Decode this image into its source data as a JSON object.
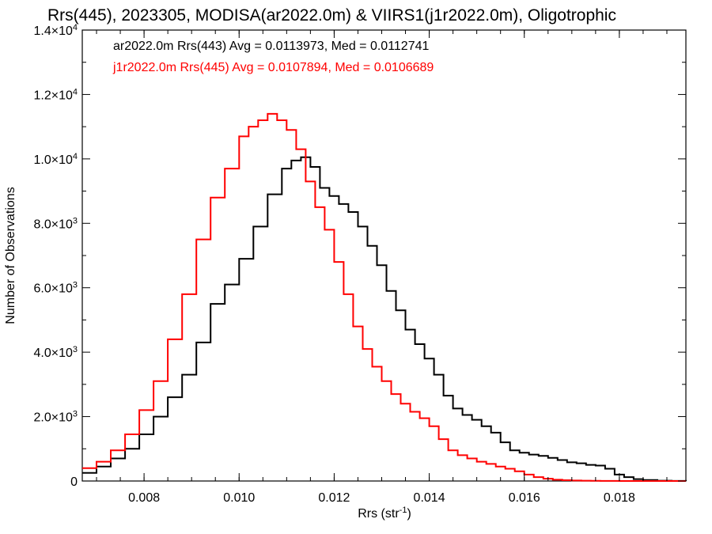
{
  "chart_data": {
    "type": "line",
    "title": "Rrs(445), 2023305, MODISA(ar2022.0m) & VIIRS1(j1r2022.0m), Oligotrophic",
    "xlabel": "Rrs (str",
    "xlabel_sup": "-1",
    "xlabel_suffix": ")",
    "ylabel": "Number of Observations",
    "xlim": [
      0.0067,
      0.0194
    ],
    "ylim": [
      0,
      14000
    ],
    "x_ticks": [
      0.008,
      0.01,
      0.012,
      0.014,
      0.016,
      0.018
    ],
    "x_tick_labels": [
      "0.008",
      "0.010",
      "0.012",
      "0.014",
      "0.016",
      "0.018"
    ],
    "y_ticks": [
      {
        "value": 0,
        "mant": "0",
        "exp": ""
      },
      {
        "value": 2000,
        "mant": "2.0×10",
        "exp": "3"
      },
      {
        "value": 4000,
        "mant": "4.0×10",
        "exp": "3"
      },
      {
        "value": 6000,
        "mant": "6.0×10",
        "exp": "3"
      },
      {
        "value": 8000,
        "mant": "8.0×10",
        "exp": "3"
      },
      {
        "value": 10000,
        "mant": "1.0×10",
        "exp": "4"
      },
      {
        "value": 12000,
        "mant": "1.2×10",
        "exp": "4"
      },
      {
        "value": 14000,
        "mant": "1.4×10",
        "exp": "4"
      }
    ],
    "grid": false,
    "series": [
      {
        "name": "ar2022.0m Rrs(443)",
        "color": "#000000",
        "annotation": "ar2022.0m Rrs(443) Avg = 0.0113973, Med = 0.0112741",
        "x": [
          0.0067,
          0.007,
          0.0073,
          0.0076,
          0.0079,
          0.0082,
          0.0085,
          0.0088,
          0.0091,
          0.0094,
          0.0097,
          0.01,
          0.0103,
          0.0106,
          0.0109,
          0.0111,
          0.0113,
          0.0115,
          0.0117,
          0.0119,
          0.0121,
          0.0123,
          0.0125,
          0.0127,
          0.0129,
          0.0131,
          0.0133,
          0.0135,
          0.0137,
          0.0139,
          0.0141,
          0.0143,
          0.0145,
          0.0147,
          0.0149,
          0.0151,
          0.0153,
          0.0155,
          0.0157,
          0.0159,
          0.0161,
          0.0163,
          0.0165,
          0.0167,
          0.0169,
          0.0171,
          0.0173,
          0.0175,
          0.0177,
          0.0179,
          0.0181,
          0.0183,
          0.0185,
          0.0188,
          0.0191,
          0.0194
        ],
        "y": [
          250,
          450,
          700,
          1000,
          1450,
          2000,
          2600,
          3300,
          4300,
          5500,
          6100,
          6900,
          7900,
          8900,
          9700,
          9950,
          10050,
          9750,
          9100,
          8850,
          8600,
          8350,
          7900,
          7300,
          6700,
          5900,
          5300,
          4700,
          4250,
          3800,
          3300,
          2650,
          2250,
          2050,
          1900,
          1700,
          1500,
          1200,
          950,
          880,
          820,
          780,
          720,
          650,
          580,
          550,
          500,
          480,
          380,
          200,
          120,
          60,
          30,
          10,
          3,
          0
        ]
      },
      {
        "name": "j1r2022.0m Rrs(445)",
        "color": "#ff0000",
        "annotation": "j1r2022.0m Rrs(445) Avg = 0.0107894, Med = 0.0106689",
        "x": [
          0.0067,
          0.007,
          0.0073,
          0.0076,
          0.0079,
          0.0082,
          0.0085,
          0.0088,
          0.0091,
          0.0094,
          0.0097,
          0.01,
          0.0102,
          0.0104,
          0.0106,
          0.0108,
          0.011,
          0.0112,
          0.0114,
          0.0116,
          0.0118,
          0.012,
          0.0122,
          0.0124,
          0.0126,
          0.0128,
          0.013,
          0.0132,
          0.0134,
          0.0136,
          0.0138,
          0.014,
          0.0142,
          0.0144,
          0.0146,
          0.0148,
          0.015,
          0.0152,
          0.0154,
          0.0156,
          0.0158,
          0.016,
          0.0162,
          0.0164,
          0.0166,
          0.0168,
          0.017,
          0.0172,
          0.0174,
          0.0176,
          0.0178,
          0.018,
          0.0182,
          0.0184,
          0.0188,
          0.0194
        ],
        "y": [
          400,
          600,
          950,
          1450,
          2200,
          3100,
          4400,
          5800,
          7500,
          8800,
          9700,
          10700,
          11000,
          11200,
          11400,
          11200,
          10900,
          10300,
          9300,
          8500,
          7800,
          6800,
          5800,
          4800,
          4100,
          3550,
          3100,
          2700,
          2400,
          2150,
          1950,
          1700,
          1300,
          950,
          800,
          700,
          600,
          530,
          450,
          380,
          300,
          200,
          120,
          70,
          40,
          25,
          15,
          10,
          5,
          3,
          2,
          1,
          0,
          0,
          0,
          0
        ]
      }
    ]
  }
}
